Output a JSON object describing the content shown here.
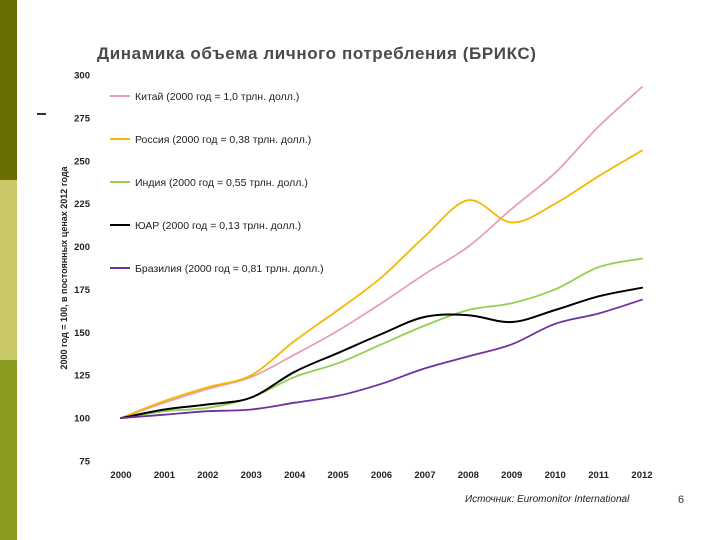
{
  "slide": {
    "title": "Динамика объема личного потребления (БРИКС)",
    "source": "Источник: Euromonitor International",
    "page_number": "6"
  },
  "colors": {
    "side_top": "#6b6e00",
    "side_mid": "#c9c96a",
    "side_bot": "#8a9a1e"
  },
  "chart_data": {
    "type": "line",
    "ylabel": "2000 год = 100, в постоянных ценах 2012 года",
    "xlabel": "",
    "ylim": [
      75,
      300
    ],
    "yticks": [
      75,
      100,
      125,
      150,
      175,
      200,
      225,
      250,
      275,
      300
    ],
    "x": [
      "2000",
      "2001",
      "2002",
      "2003",
      "2004",
      "2005",
      "2006",
      "2007",
      "2008",
      "2009",
      "2010",
      "2011",
      "2012"
    ],
    "grid": false,
    "legend_position": "top-left",
    "series": [
      {
        "name": "Китай (2000 год = 1,0 трлн. долл.)",
        "color": "#e8a0b0",
        "values": [
          100,
          109,
          117,
          124,
          137,
          151,
          167,
          184,
          200,
          222,
          243,
          270,
          293
        ]
      },
      {
        "name": "Россия (2000 год = 0,38 трлн. долл.)",
        "color": "#f5b800",
        "values": [
          100,
          110,
          118,
          125,
          145,
          163,
          182,
          206,
          227,
          214,
          225,
          241,
          256
        ]
      },
      {
        "name": "Индия (2000 год = 0,55 трлн. долл.)",
        "color": "#92d050",
        "values": [
          100,
          104,
          106,
          112,
          124,
          132,
          143,
          154,
          163,
          167,
          175,
          188,
          193
        ]
      },
      {
        "name": "ЮАР (2000 год = 0,13 трлн. долл.)",
        "color": "#000000",
        "values": [
          100,
          105,
          108,
          112,
          127,
          138,
          149,
          159,
          160,
          156,
          163,
          171,
          176
        ]
      },
      {
        "name": "Бразилия (2000 год = 0,81 трлн. долл.)",
        "color": "#7030a0",
        "values": [
          100,
          102,
          104,
          105,
          109,
          113,
          120,
          129,
          136,
          143,
          155,
          161,
          169
        ]
      }
    ]
  }
}
